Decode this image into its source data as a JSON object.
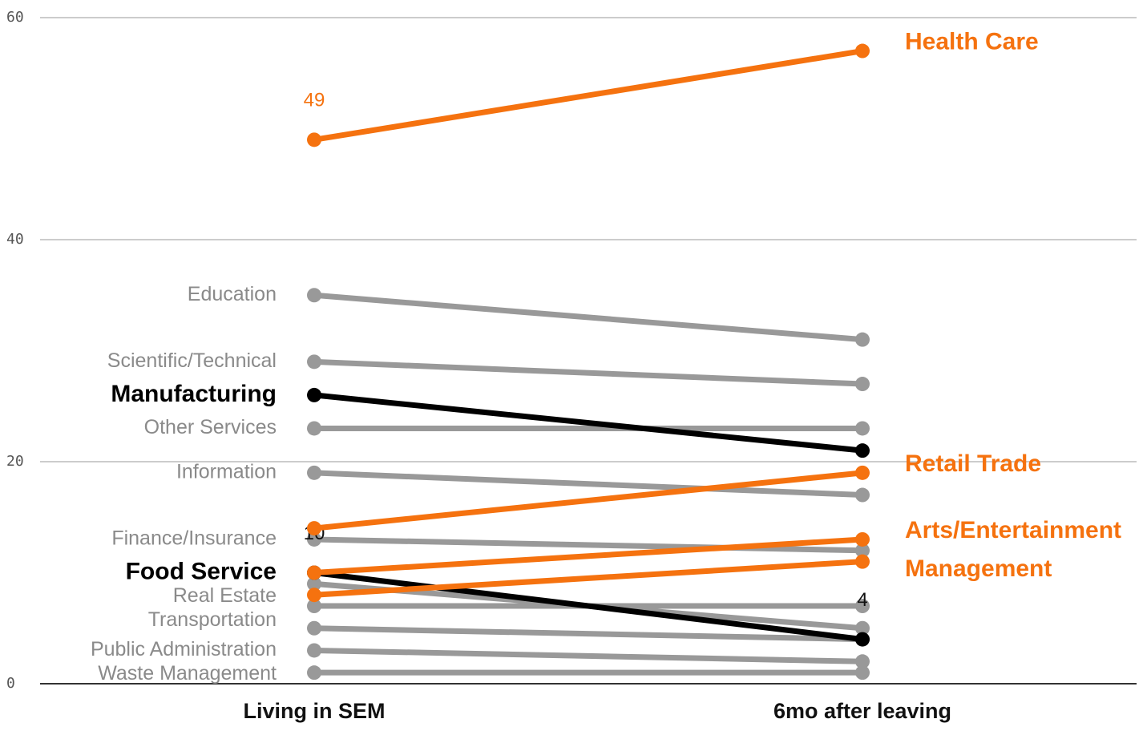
{
  "chart_data": {
    "type": "slope",
    "categories": [
      "Living in SEM",
      "6mo after leaving"
    ],
    "ylim": [
      0,
      60
    ],
    "yticks": [
      0,
      20,
      40,
      60
    ],
    "grid": true,
    "series": [
      {
        "name": "Education",
        "color": "#999999",
        "values": [
          35,
          31
        ]
      },
      {
        "name": "Scientific/Technical",
        "color": "#999999",
        "values": [
          29,
          27
        ]
      },
      {
        "name": "Other Services",
        "color": "#999999",
        "values": [
          23,
          23
        ]
      },
      {
        "name": "Information",
        "color": "#999999",
        "values": [
          19,
          17
        ]
      },
      {
        "name": "Finance/Insurance",
        "color": "#999999",
        "values": [
          13,
          12
        ]
      },
      {
        "name": "Real Estate",
        "color": "#999999",
        "values": [
          9,
          5
        ]
      },
      {
        "name": "Transportation",
        "color": "#999999",
        "values": [
          7,
          7
        ]
      },
      {
        "name": null,
        "color": "#999999",
        "values": [
          5,
          4
        ]
      },
      {
        "name": "Public Administration",
        "color": "#999999",
        "values": [
          3,
          2
        ]
      },
      {
        "name": "Waste Management",
        "color": "#999999",
        "values": [
          1,
          1
        ]
      },
      {
        "name": "Manufacturing",
        "color": "#000000",
        "values": [
          26,
          21
        ]
      },
      {
        "name": "Food Service",
        "color": "#000000",
        "values": [
          10,
          4
        ],
        "value_labels": [
          "10",
          "4"
        ]
      },
      {
        "name": "Health Care",
        "color": "#f5720f",
        "values": [
          49,
          57
        ],
        "value_labels": [
          "49",
          null
        ]
      },
      {
        "name": "Retail Trade",
        "color": "#f5720f",
        "values": [
          14,
          19
        ]
      },
      {
        "name": "Arts/Entertainment",
        "color": "#f5720f",
        "values": [
          10,
          13
        ]
      },
      {
        "name": "Management",
        "color": "#f5720f",
        "values": [
          8,
          11
        ]
      }
    ]
  }
}
